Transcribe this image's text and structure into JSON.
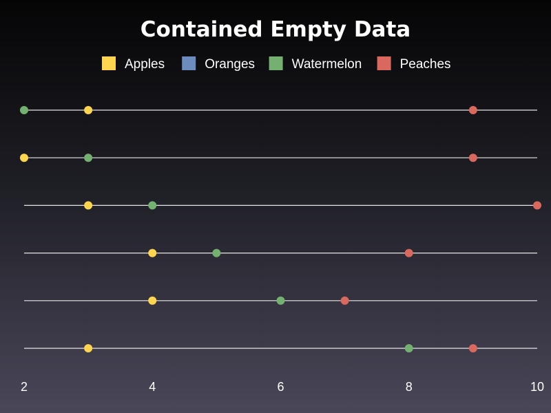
{
  "chart_data": {
    "type": "scatter",
    "title": "Contained Empty Data",
    "xlabel": "",
    "ylabel": "",
    "xlim": [
      2,
      10
    ],
    "x_ticks": [
      2,
      4,
      6,
      8,
      10
    ],
    "legend_position": "top",
    "grid": false,
    "rows": 6,
    "series": [
      {
        "name": "Apples",
        "color": "#ffd54f",
        "values": [
          3,
          2,
          3,
          4,
          4,
          3
        ]
      },
      {
        "name": "Oranges",
        "color": "#6b8cbc",
        "values": [
          null,
          null,
          null,
          null,
          null,
          null
        ]
      },
      {
        "name": "Watermelon",
        "color": "#74b06f",
        "values": [
          2,
          3,
          4,
          5,
          6,
          8
        ]
      },
      {
        "name": "Peaches",
        "color": "#d9685e",
        "values": [
          9,
          9,
          10,
          8,
          7,
          9
        ]
      }
    ]
  }
}
